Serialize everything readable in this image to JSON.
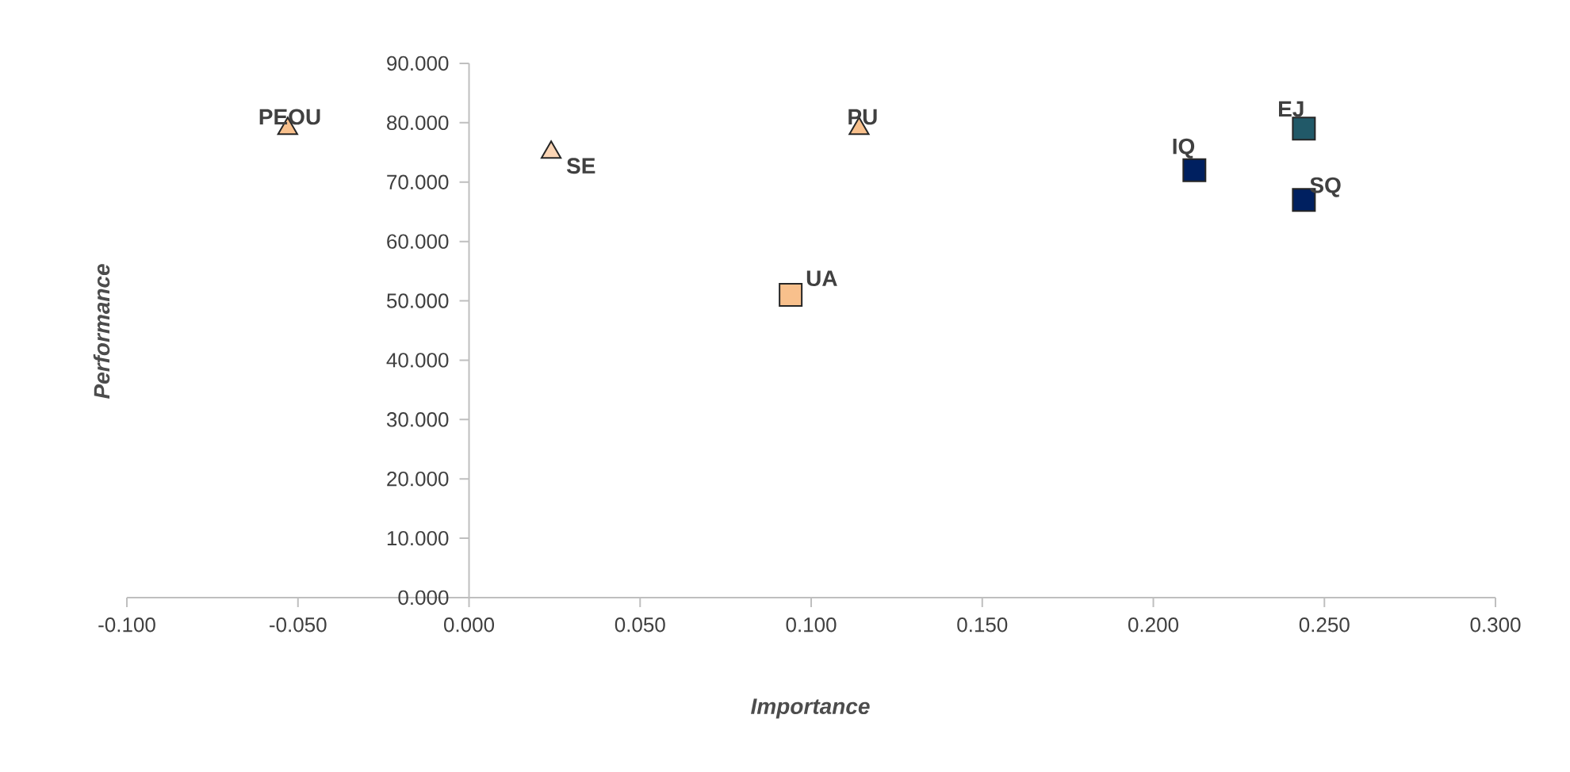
{
  "chart_data": {
    "type": "scatter",
    "xlabel": "Importance",
    "ylabel": "Performance",
    "xlim": [
      -0.1,
      0.3
    ],
    "ylim": [
      0,
      90
    ],
    "xticks": [
      {
        "value": -0.1,
        "label": "-0.100"
      },
      {
        "value": -0.05,
        "label": "-0.050"
      },
      {
        "value": 0,
        "label": "0.000"
      },
      {
        "value": 0.05,
        "label": "0.050"
      },
      {
        "value": 0.1,
        "label": "0.100"
      },
      {
        "value": 0.15,
        "label": "0.150"
      },
      {
        "value": 0.2,
        "label": "0.200"
      },
      {
        "value": 0.25,
        "label": "0.250"
      },
      {
        "value": 0.3,
        "label": "0.300"
      }
    ],
    "yticks": [
      {
        "value": 0,
        "label": "0.000"
      },
      {
        "value": 10,
        "label": "10.000"
      },
      {
        "value": 20,
        "label": "20.000"
      },
      {
        "value": 30,
        "label": "30.000"
      },
      {
        "value": 40,
        "label": "40.000"
      },
      {
        "value": 50,
        "label": "50.000"
      },
      {
        "value": 60,
        "label": "60.000"
      },
      {
        "value": 70,
        "label": "70.000"
      },
      {
        "value": 80,
        "label": "80.000"
      },
      {
        "value": 90,
        "label": "90.000"
      }
    ],
    "series": [
      {
        "name": "PEOU",
        "color": "#f8c08c",
        "marker": "triangle",
        "x": [
          -0.053
        ],
        "values": [
          79
        ]
      },
      {
        "name": "SE",
        "color": "#fbd5b5",
        "marker": "triangle",
        "x": [
          0.024
        ],
        "values": [
          75
        ]
      },
      {
        "name": "PU",
        "color": "#f8c08c",
        "marker": "triangle",
        "x": [
          0.114
        ],
        "values": [
          79
        ]
      },
      {
        "name": "UA",
        "color": "#f8c08c",
        "marker": "square",
        "x": [
          0.094
        ],
        "values": [
          51
        ]
      },
      {
        "name": "IQ",
        "color": "#002060",
        "marker": "square",
        "x": [
          0.212
        ],
        "values": [
          72
        ]
      },
      {
        "name": "EJ",
        "color": "#215968",
        "marker": "square",
        "x": [
          0.244
        ],
        "values": [
          79
        ]
      },
      {
        "name": "SQ",
        "color": "#002060",
        "marker": "square",
        "x": [
          0.244
        ],
        "values": [
          67
        ]
      }
    ]
  }
}
